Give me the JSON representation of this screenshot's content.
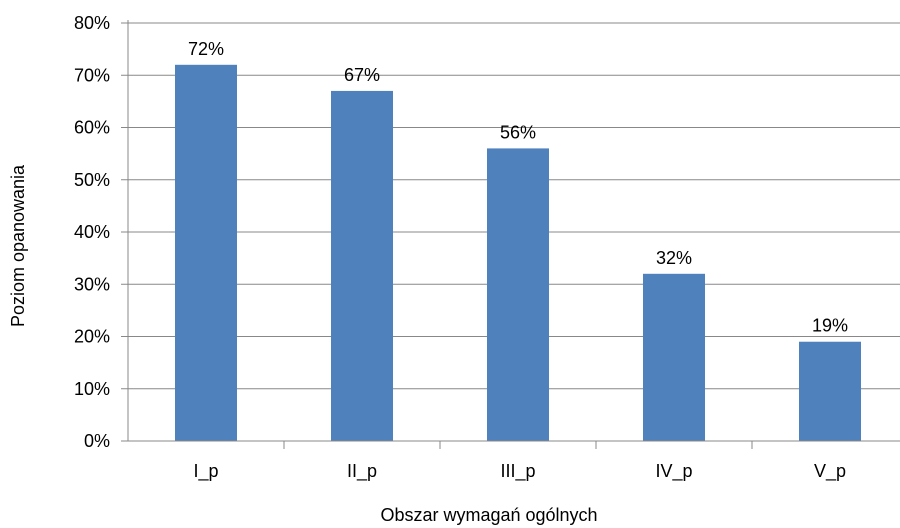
{
  "chart_data": {
    "type": "bar",
    "title": "",
    "xlabel": "Obszar wymagań ogólnych",
    "ylabel": "Poziom opanowania",
    "categories": [
      "I_p",
      "II_p",
      "III_p",
      "IV_p",
      "V_p"
    ],
    "values": [
      72,
      67,
      56,
      32,
      19
    ],
    "data_labels": [
      "72%",
      "67%",
      "56%",
      "32%",
      "19%"
    ],
    "ylim": [
      0,
      80
    ],
    "yticks": [
      0,
      10,
      20,
      30,
      40,
      50,
      60,
      70,
      80
    ],
    "ytick_labels": [
      "0%",
      "10%",
      "20%",
      "30%",
      "40%",
      "50%",
      "60%",
      "70%",
      "80%"
    ],
    "grid": true,
    "legend": "none",
    "colors": {
      "bar": "#4f81bd",
      "grid": "#888888",
      "axis": "#888888"
    }
  }
}
